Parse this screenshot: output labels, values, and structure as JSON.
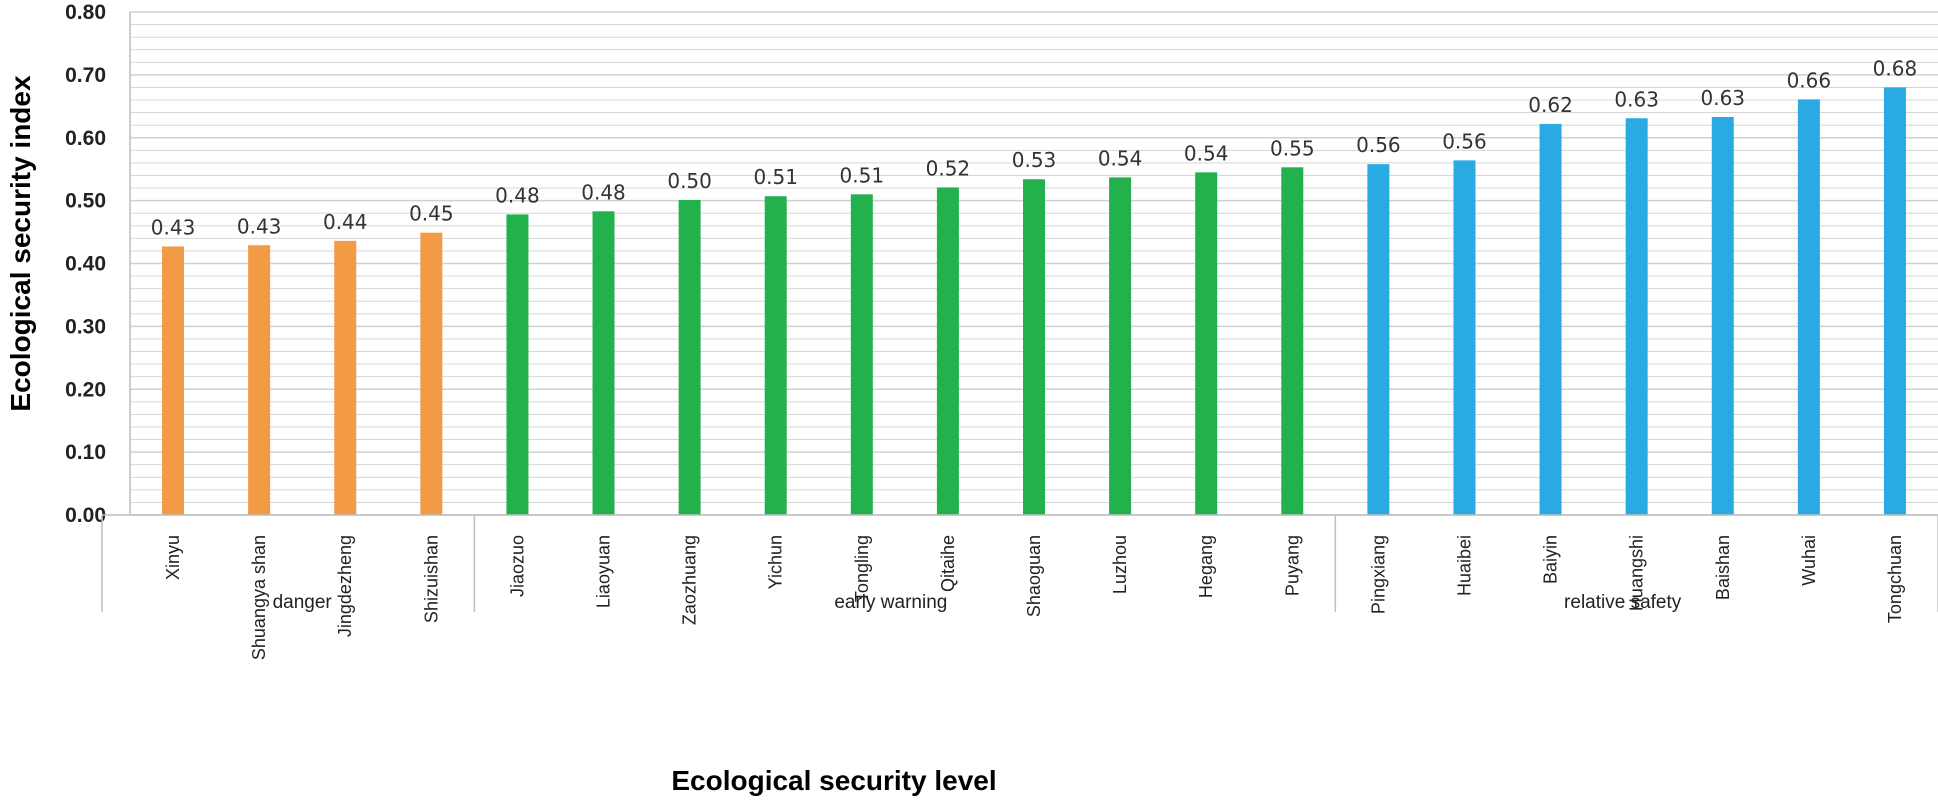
{
  "chart_data": {
    "type": "bar",
    "title": "",
    "xlabel": "Ecological security level",
    "ylabel": "Ecological security index",
    "ylim": [
      0,
      0.8
    ],
    "yticks": [
      "0.00",
      "0.10",
      "0.20",
      "0.30",
      "0.40",
      "0.50",
      "0.60",
      "0.70",
      "0.80"
    ],
    "grid": true,
    "colors": {
      "danger": "#F39A45",
      "early warning": "#22B14C",
      "relative safety": "#29AAE2",
      "grid": "#d0d0d0",
      "axis": "#bfbfbf"
    },
    "categories": [
      "Xinyu",
      "Shuangya shan",
      "Jingdezheng",
      "Shizuishan",
      "Jiaozuo",
      "Liaoyuan",
      "Zaozhuang",
      "Yichun",
      "Tongling",
      "Qitaihe",
      "Shaoguan",
      "Luzhou",
      "Hegang",
      "Puyang",
      "Pingxiang",
      "Huaibei",
      "Baiyin",
      "Huangshi",
      "Baishan",
      "Wuhai",
      "Tongchuan"
    ],
    "values": [
      0.427,
      0.429,
      0.436,
      0.449,
      0.478,
      0.483,
      0.501,
      0.507,
      0.51,
      0.521,
      0.534,
      0.537,
      0.545,
      0.553,
      0.558,
      0.564,
      0.622,
      0.631,
      0.633,
      0.661,
      0.68
    ],
    "labels": [
      "0.43",
      "0.43",
      "0.44",
      "0.45",
      "0.48",
      "0.48",
      "0.50",
      "0.51",
      "0.51",
      "0.52",
      "0.53",
      "0.54",
      "0.54",
      "0.55",
      "0.56",
      "0.56",
      "0.62",
      "0.63",
      "0.63",
      "0.66",
      "0.68"
    ],
    "groups": [
      {
        "name": "danger",
        "start": 0,
        "count": 4
      },
      {
        "name": "early warning",
        "start": 4,
        "count": 10
      },
      {
        "name": "relative safety",
        "start": 14,
        "count": 7
      }
    ]
  }
}
